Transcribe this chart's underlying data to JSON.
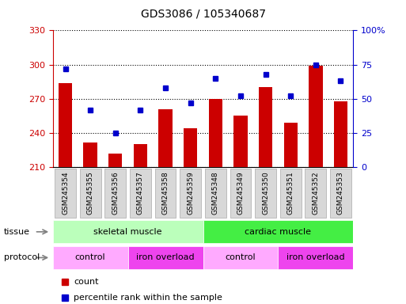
{
  "title": "GDS3086 / 105340687",
  "samples": [
    "GSM245354",
    "GSM245355",
    "GSM245356",
    "GSM245357",
    "GSM245358",
    "GSM245359",
    "GSM245348",
    "GSM245349",
    "GSM245350",
    "GSM245351",
    "GSM245352",
    "GSM245353"
  ],
  "counts": [
    284,
    232,
    222,
    230,
    261,
    244,
    270,
    255,
    280,
    249,
    299,
    268
  ],
  "percentiles": [
    72,
    42,
    25,
    42,
    58,
    47,
    65,
    52,
    68,
    52,
    75,
    63
  ],
  "bar_color": "#cc0000",
  "dot_color": "#0000cc",
  "ylim_left": [
    210,
    330
  ],
  "ylim_right": [
    0,
    100
  ],
  "yticks_left": [
    210,
    240,
    270,
    300,
    330
  ],
  "yticks_right": [
    0,
    25,
    50,
    75,
    100
  ],
  "yticklabels_right": [
    "0",
    "25",
    "50",
    "75",
    "100%"
  ],
  "tissue_labels": [
    {
      "label": "skeletal muscle",
      "start": 0,
      "end": 5,
      "color": "#bbffbb"
    },
    {
      "label": "cardiac muscle",
      "start": 6,
      "end": 11,
      "color": "#44ee44"
    }
  ],
  "protocol_labels": [
    {
      "label": "control",
      "start": 0,
      "end": 2,
      "color": "#ffaaff"
    },
    {
      "label": "iron overload",
      "start": 3,
      "end": 5,
      "color": "#ee44ee"
    },
    {
      "label": "control",
      "start": 6,
      "end": 8,
      "color": "#ffaaff"
    },
    {
      "label": "iron overload",
      "start": 9,
      "end": 11,
      "color": "#ee44ee"
    }
  ],
  "legend_count_label": "count",
  "legend_pct_label": "percentile rank within the sample",
  "left_axis_color": "#cc0000",
  "right_axis_color": "#0000cc",
  "tissue_label_text": "tissue",
  "protocol_label_text": "protocol",
  "sample_box_color": "#d8d8d8",
  "sample_box_edge": "#aaaaaa"
}
